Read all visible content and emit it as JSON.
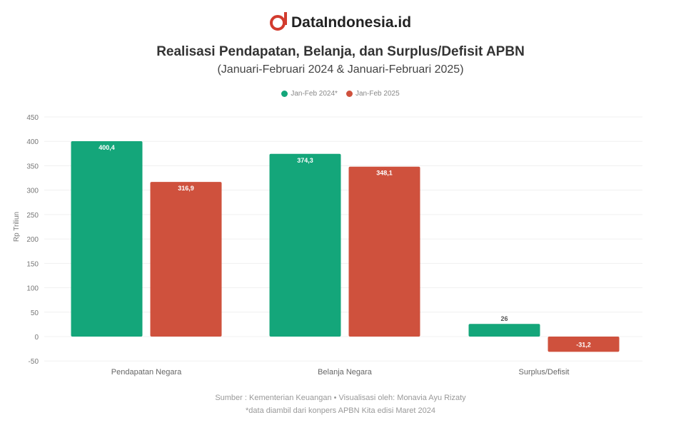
{
  "brand": "DataIndonesia.id",
  "chart_data": {
    "type": "bar",
    "title": "Realisasi Pendapatan, Belanja, dan Surplus/Defisit APBN",
    "subtitle": "(Januari-Februari 2024 & Januari-Februari 2025)",
    "ylabel": "Rp Triliun",
    "ylim": [
      -50,
      450
    ],
    "yticks": [
      -50,
      0,
      50,
      100,
      150,
      200,
      250,
      300,
      350,
      400,
      450
    ],
    "categories": [
      "Pendapatan Negara",
      "Belanja Negara",
      "Surplus/Defisit"
    ],
    "series": [
      {
        "name": "Jan-Feb 2024*",
        "color": "#14a67a",
        "values": [
          400.4,
          374.3,
          26
        ],
        "labels": [
          "400,4",
          "374,3",
          "26"
        ]
      },
      {
        "name": "Jan-Feb 2025",
        "color": "#cf513d",
        "values": [
          316.9,
          348.1,
          -31.2
        ],
        "labels": [
          "316,9",
          "348,1",
          "-31,2"
        ]
      }
    ],
    "legend": "top-center",
    "grid": true
  },
  "source": "Sumber : Kementerian Keuangan • Visualisasi oleh: Monavia Ayu Rizaty",
  "note": "*data diambil dari konpers APBN Kita edisi Maret 2024"
}
